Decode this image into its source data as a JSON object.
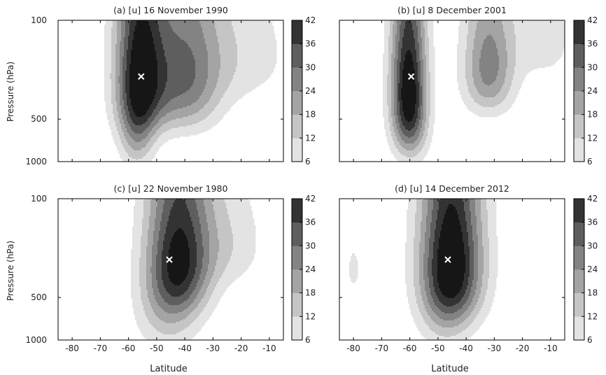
{
  "figure": {
    "ylabel": "Pressure (hPa)",
    "xlabel": "Latitude"
  },
  "chart_data": [
    {
      "type": "heatmap",
      "title": "(a) [u] 16 November 1990",
      "xlabel": "",
      "ylabel": "Pressure (hPa)",
      "xlim": [
        -85,
        -5
      ],
      "ylim": [
        1000,
        100
      ],
      "yticks": [
        "100",
        "500",
        "1000"
      ],
      "xticks": [],
      "levels": [
        6,
        12,
        18,
        24,
        30,
        36,
        42
      ],
      "colorbar_ticks": [
        "6",
        "12",
        "18",
        "24",
        "30",
        "36",
        "42"
      ],
      "max_marker": {
        "lat": -55.5,
        "pressure": 250
      },
      "jets": [
        {
          "lat": -56,
          "pressure": 225,
          "peak": 38,
          "lat_width": 6.5,
          "p_width": 260
        },
        {
          "lat": -40,
          "pressure": 250,
          "peak": 28,
          "lat_width": 9,
          "p_width": 230
        },
        {
          "lat": -57,
          "pressure": 650,
          "peak": 18,
          "lat_width": 4.5,
          "p_width": 330
        },
        {
          "lat": -20,
          "pressure": 170,
          "peak": 9,
          "lat_width": 14,
          "p_width": 140
        }
      ]
    },
    {
      "type": "heatmap",
      "title": "(b) [u] 8 December 2001",
      "xlabel": "",
      "ylabel": "",
      "xlim": [
        -85,
        -5
      ],
      "ylim": [
        1000,
        100
      ],
      "yticks": [],
      "xticks": [],
      "levels": [
        6,
        12,
        18,
        24,
        30,
        36,
        42
      ],
      "colorbar_ticks": [
        "6",
        "12",
        "18",
        "24",
        "30",
        "36",
        "42"
      ],
      "max_marker": {
        "lat": -59.5,
        "pressure": 250
      },
      "jets": [
        {
          "lat": -60.5,
          "pressure": 260,
          "peak": 38,
          "lat_width": 4.5,
          "p_width": 270
        },
        {
          "lat": -60,
          "pressure": 600,
          "peak": 19,
          "lat_width": 4.5,
          "p_width": 300
        },
        {
          "lat": -32,
          "pressure": 210,
          "peak": 27,
          "lat_width": 6.5,
          "p_width": 160
        },
        {
          "lat": -12,
          "pressure": 130,
          "peak": 9,
          "lat_width": 8,
          "p_width": 90
        }
      ]
    },
    {
      "type": "heatmap",
      "title": "(c) [u] 22 November 1980",
      "xlabel": "Latitude",
      "ylabel": "Pressure (hPa)",
      "xlim": [
        -85,
        -5
      ],
      "ylim": [
        1000,
        100
      ],
      "yticks": [
        "100",
        "500",
        "1000"
      ],
      "xticks": [
        "-80",
        "-70",
        "-60",
        "-50",
        "-40",
        "-30",
        "-20",
        "-10"
      ],
      "levels": [
        6,
        12,
        18,
        24,
        30,
        36,
        42
      ],
      "colorbar_ticks": [
        "6",
        "12",
        "18",
        "24",
        "30",
        "36",
        "42"
      ],
      "max_marker": {
        "lat": -45.5,
        "pressure": 270
      },
      "jets": [
        {
          "lat": -42,
          "pressure": 260,
          "peak": 37,
          "lat_width": 8,
          "p_width": 250
        },
        {
          "lat": -46,
          "pressure": 650,
          "peak": 14,
          "lat_width": 8,
          "p_width": 380
        },
        {
          "lat": -25,
          "pressure": 200,
          "peak": 10,
          "lat_width": 10,
          "p_width": 140
        }
      ]
    },
    {
      "type": "heatmap",
      "title": "(d) [u] 14 December 2012",
      "xlabel": "Latitude",
      "ylabel": "",
      "xlim": [
        -85,
        -5
      ],
      "ylim": [
        1000,
        100
      ],
      "yticks": [],
      "xticks": [
        "-80",
        "-70",
        "-60",
        "-50",
        "-40",
        "-30",
        "-20",
        "-10"
      ],
      "levels": [
        6,
        12,
        18,
        24,
        30,
        36,
        42
      ],
      "colorbar_ticks": [
        "6",
        "12",
        "18",
        "24",
        "30",
        "36",
        "42"
      ],
      "max_marker": {
        "lat": -46.5,
        "pressure": 270
      },
      "jets": [
        {
          "lat": -45,
          "pressure": 260,
          "peak": 43,
          "lat_width": 8,
          "p_width": 280
        },
        {
          "lat": -47,
          "pressure": 640,
          "peak": 14,
          "lat_width": 7,
          "p_width": 370
        },
        {
          "lat": -80,
          "pressure": 320,
          "peak": 8,
          "lat_width": 2,
          "p_width": 100
        }
      ]
    }
  ]
}
